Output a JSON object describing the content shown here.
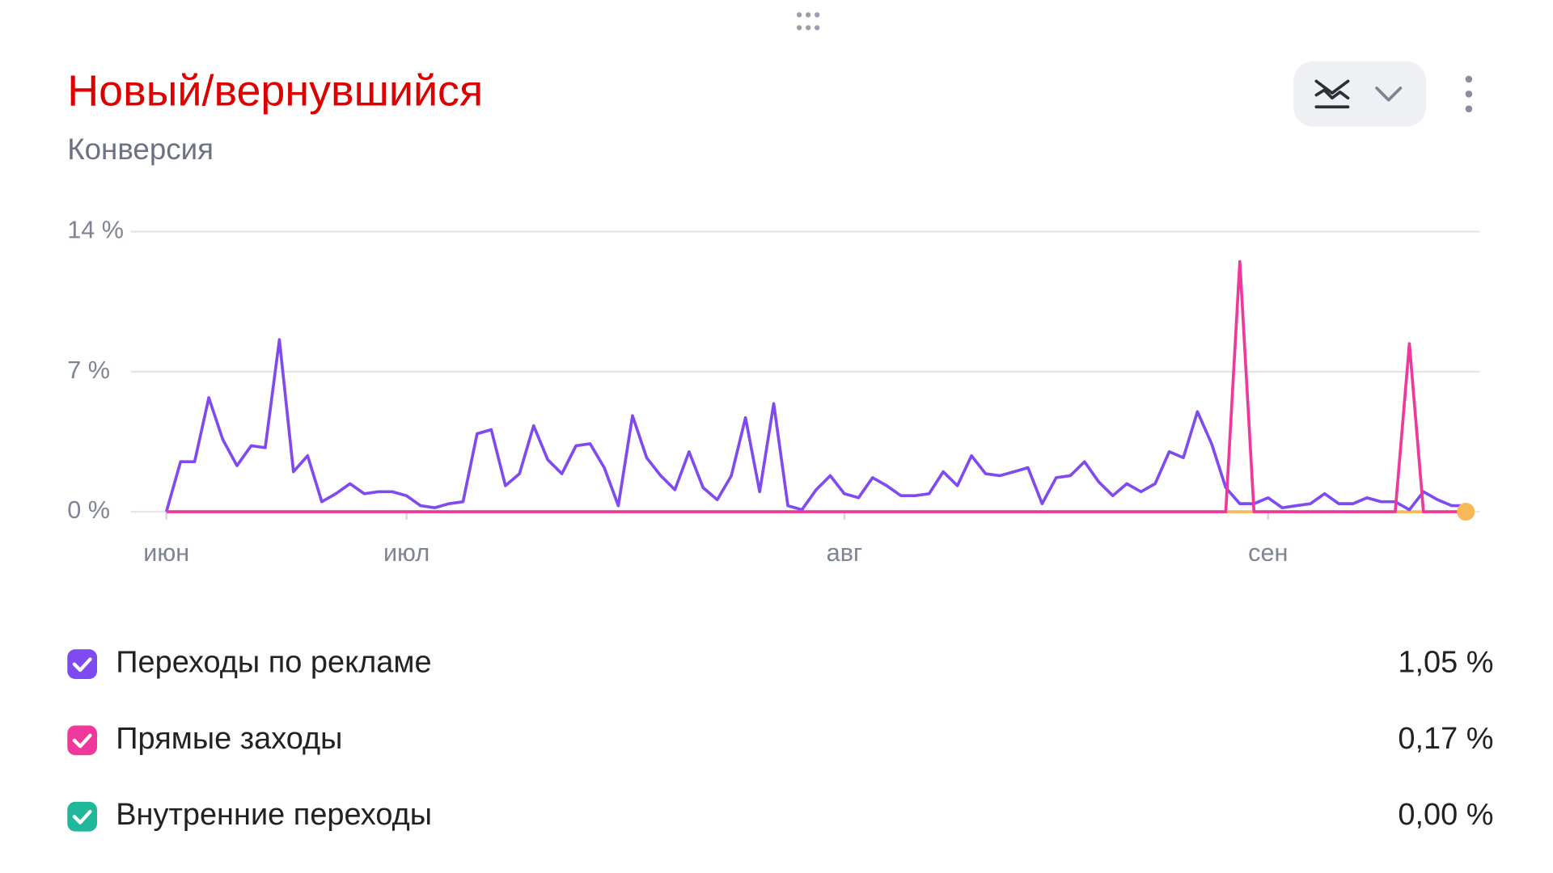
{
  "chart_data": {
    "type": "line",
    "title": "Новый/вернувшийся",
    "subtitle": "Конверсия",
    "categories": [
      "июн",
      null,
      null,
      null,
      null,
      null,
      null,
      null,
      null,
      null,
      null,
      null,
      null,
      null,
      null,
      null,
      null,
      "июл",
      null,
      null,
      null,
      null,
      null,
      null,
      null,
      null,
      null,
      null,
      null,
      null,
      null,
      null,
      null,
      null,
      null,
      null,
      null,
      null,
      null,
      null,
      null,
      null,
      null,
      null,
      null,
      null,
      null,
      null,
      "авг",
      null,
      null,
      null,
      null,
      null,
      null,
      null,
      null,
      null,
      null,
      null,
      null,
      null,
      null,
      null,
      null,
      null,
      null,
      null,
      null,
      null,
      null,
      null,
      null,
      null,
      null,
      null,
      null,
      null,
      "сен",
      null,
      null,
      null,
      null,
      null,
      null,
      null,
      null,
      null,
      null,
      null,
      null,
      null,
      null
    ],
    "ylim": [
      0,
      14
    ],
    "yticks": [
      {
        "value": 0,
        "label": "0 %"
      },
      {
        "value": 7,
        "label": "7 %"
      },
      {
        "value": 14,
        "label": "14 %"
      }
    ],
    "grid": true,
    "series": [
      {
        "name": "Переходы по рекламе",
        "color": "#7f4bf0",
        "total": 1.05,
        "total_label": "1,05 %",
        "values": [
          0,
          2.5,
          2.5,
          5.7,
          3.6,
          2.3,
          3.3,
          3.2,
          8.6,
          2.0,
          2.8,
          0.5,
          0.9,
          1.4,
          0.9,
          1.0,
          1.0,
          0.8,
          0.3,
          0.2,
          0.4,
          0.5,
          3.9,
          4.1,
          1.3,
          1.9,
          4.3,
          2.6,
          1.9,
          3.3,
          3.4,
          2.2,
          0.3,
          4.8,
          2.7,
          1.8,
          1.1,
          3.0,
          1.2,
          0.6,
          1.8,
          4.7,
          1.0,
          5.4,
          0.3,
          0.1,
          1.1,
          1.8,
          0.9,
          0.7,
          1.7,
          1.3,
          0.8,
          0.8,
          0.9,
          2.0,
          1.3,
          2.8,
          1.9,
          1.8,
          2.0,
          2.2,
          0.4,
          1.7,
          1.8,
          2.5,
          1.5,
          0.8,
          1.4,
          1.0,
          1.4,
          3.0,
          2.7,
          5.0,
          3.4,
          1.2,
          0.4,
          0.4,
          0.7,
          0.2,
          0.3,
          0.4,
          0.9,
          0.4,
          0.4,
          0.7,
          0.5,
          0.5,
          0.1,
          1.0,
          0.6,
          0.3,
          0.3
        ]
      },
      {
        "name": "Прямые заходы",
        "color": "#f0379b",
        "total": 0.17,
        "total_label": "0,17 %",
        "values": [
          0,
          0,
          0,
          0,
          0,
          0,
          0,
          0,
          0,
          0,
          0,
          0,
          0,
          0,
          0,
          0,
          0,
          0,
          0,
          0,
          0,
          0,
          0,
          0,
          0,
          0,
          0,
          0,
          0,
          0,
          0,
          0,
          0,
          0,
          0,
          0,
          0,
          0,
          0,
          0,
          0,
          0,
          0,
          0,
          0,
          0,
          0,
          0,
          0,
          0,
          0,
          0,
          0,
          0,
          0,
          0,
          0,
          0,
          0,
          0,
          0,
          0,
          0,
          0,
          0,
          0,
          0,
          0,
          0,
          0,
          0,
          0,
          0,
          0,
          0,
          0,
          12.5,
          0,
          0,
          0,
          0,
          0,
          0,
          0,
          0,
          0,
          0,
          0,
          8.4,
          0,
          0,
          0,
          0
        ]
      },
      {
        "name": "Внутренние переходы",
        "color": "#1fb89a",
        "line_color": "#f7b955",
        "total": 0,
        "total_label": "0,00 %",
        "values": [
          0,
          0,
          0,
          0,
          0,
          0,
          0,
          0,
          0,
          0,
          0,
          0,
          0,
          0,
          0,
          0,
          0,
          0,
          0,
          0,
          0,
          0,
          0,
          0,
          0,
          0,
          0,
          0,
          0,
          0,
          0,
          0,
          0,
          0,
          0,
          0,
          0,
          0,
          0,
          0,
          0,
          0,
          0,
          0,
          0,
          0,
          0,
          0,
          0,
          0,
          0,
          0,
          0,
          0,
          0,
          0,
          0,
          0,
          0,
          0,
          0,
          0,
          0,
          0,
          0,
          0,
          0,
          0,
          0,
          0,
          0,
          0,
          0,
          0,
          0,
          0,
          0,
          0,
          0,
          0,
          0,
          0,
          0,
          0,
          0,
          0,
          0,
          0,
          0,
          0,
          0,
          0,
          0
        ]
      }
    ]
  }
}
